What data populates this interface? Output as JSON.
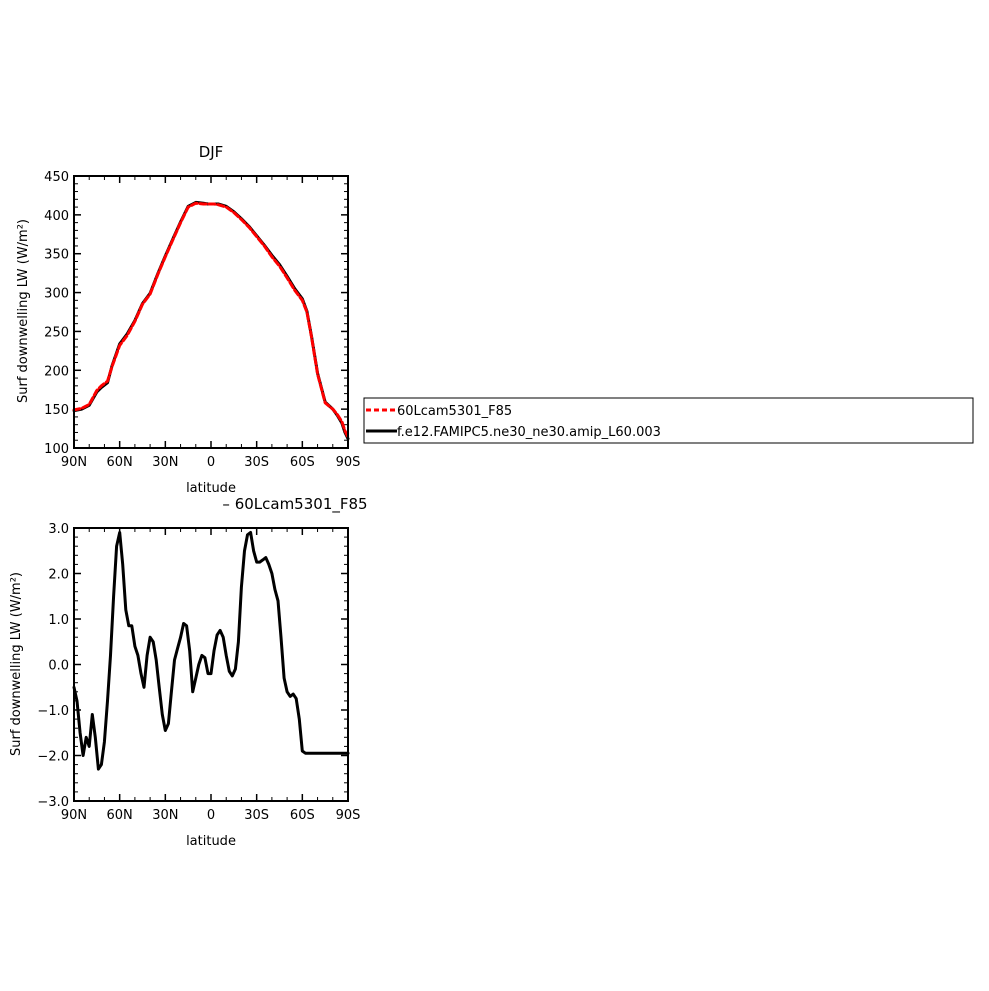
{
  "chart_data": [
    {
      "type": "line",
      "title": "DJF",
      "xlabel": "latitude",
      "ylabel": "Surf downwelling LW (W/m²)",
      "x_ticks": [
        90,
        60,
        30,
        0,
        -30,
        -60,
        -90
      ],
      "x_tick_labels": [
        "90N",
        "60N",
        "30N",
        "0",
        "30S",
        "60S",
        "90S"
      ],
      "xlim": [
        90,
        -90
      ],
      "ylim": [
        100,
        450
      ],
      "y_ticks": [
        100,
        150,
        200,
        250,
        300,
        350,
        400,
        450
      ],
      "y_tick_labels": [
        "100",
        "150",
        "200",
        "250",
        "300",
        "350",
        "400",
        "450"
      ],
      "x": [
        90,
        85,
        80,
        75,
        72,
        68,
        65,
        60,
        55,
        50,
        45,
        40,
        35,
        30,
        25,
        20,
        15,
        10,
        5,
        2,
        0,
        -2,
        -5,
        -10,
        -15,
        -20,
        -25,
        -30,
        -35,
        -40,
        -45,
        -50,
        -55,
        -60,
        -63,
        -66,
        -70,
        -75,
        -80,
        -83,
        -86,
        -88,
        -90
      ],
      "series": [
        {
          "name": "60Lcam5301_F85",
          "color": "#ff0000",
          "dash": "dashed",
          "values": [
            149,
            151,
            156,
            174,
            180,
            186,
            205,
            232,
            245,
            263,
            285,
            298,
            323,
            346,
            368,
            390,
            410,
            415,
            414,
            414,
            414,
            414,
            413,
            410,
            403,
            394,
            384,
            372,
            360,
            346,
            334,
            319,
            303,
            290,
            275,
            243,
            195,
            158,
            150,
            143,
            134,
            122,
            114
          ]
        },
        {
          "name": "f.e12.FAMIPC5.ne30_ne30.amip_L60.003",
          "color": "#000000",
          "dash": "solid",
          "values": [
            148,
            150,
            155,
            172,
            178,
            184,
            206,
            234,
            247,
            264,
            286,
            299,
            324,
            347,
            369,
            391,
            411,
            416,
            415,
            414,
            414,
            414,
            414,
            411,
            404,
            395,
            385,
            373,
            361,
            348,
            336,
            321,
            305,
            292,
            276,
            244,
            196,
            159,
            150,
            142,
            132,
            120,
            112
          ]
        }
      ],
      "legend": {
        "placement": "right",
        "entries": [
          "60Lcam5301_F85",
          "f.e12.FAMIPC5.ne30_ne30.amip_L60.003"
        ]
      }
    },
    {
      "type": "line",
      "title": "– 60Lcam5301_F85",
      "xlabel": "latitude",
      "ylabel": "Surf downwelling LW (W/m²)",
      "x_ticks": [
        90,
        60,
        30,
        0,
        -30,
        -60,
        -90
      ],
      "x_tick_labels": [
        "90N",
        "60N",
        "30N",
        "0",
        "30S",
        "60S",
        "90S"
      ],
      "xlim": [
        90,
        -90
      ],
      "ylim": [
        -3,
        3
      ],
      "y_ticks": [
        -3,
        -2,
        -1,
        0,
        1,
        2,
        3
      ],
      "y_tick_labels": [
        "−3.0",
        "−2.0",
        "−1.0",
        "0.0",
        "1.0",
        "2.0",
        "3.0"
      ],
      "x": [
        90,
        88,
        86,
        84,
        82,
        80,
        78,
        76,
        74,
        72,
        70,
        68,
        66,
        64,
        62,
        60,
        58,
        56,
        54,
        52,
        50,
        48,
        46,
        44,
        42,
        40,
        38,
        36,
        34,
        32,
        30,
        28,
        26,
        24,
        22,
        20,
        18,
        16,
        14,
        12,
        10,
        8,
        6,
        4,
        2,
        0,
        -2,
        -4,
        -6,
        -8,
        -10,
        -12,
        -14,
        -16,
        -18,
        -20,
        -22,
        -24,
        -26,
        -28,
        -30,
        -32,
        -34,
        -36,
        -38,
        -40,
        -42,
        -44,
        -46,
        -48,
        -50,
        -52,
        -54,
        -56,
        -58,
        -60,
        -62,
        -64,
        -66,
        -68,
        -70,
        -72,
        -74,
        -76,
        -78,
        -80,
        -82,
        -84,
        -86,
        -88,
        -90
      ],
      "series": [
        {
          "name": "",
          "color": "#000000",
          "dash": "solid",
          "values": [
            -0.5,
            -0.8,
            -1.5,
            -2.0,
            -1.6,
            -1.8,
            -1.1,
            -1.6,
            -2.3,
            -2.2,
            -1.7,
            -0.8,
            0.2,
            1.5,
            2.6,
            2.9,
            2.2,
            1.2,
            0.85,
            0.85,
            0.4,
            0.2,
            -0.2,
            -0.5,
            0.2,
            0.6,
            0.5,
            0.1,
            -0.5,
            -1.1,
            -1.45,
            -1.3,
            -0.6,
            0.1,
            0.35,
            0.6,
            0.9,
            0.85,
            0.3,
            -0.6,
            -0.3,
            0.0,
            0.2,
            0.15,
            -0.2,
            -0.2,
            0.3,
            0.65,
            0.75,
            0.6,
            0.2,
            -0.15,
            -0.25,
            -0.1,
            0.5,
            1.7,
            2.5,
            2.85,
            2.9,
            2.5,
            2.25,
            2.25,
            2.3,
            2.35,
            2.2,
            2.0,
            1.65,
            1.4,
            0.6,
            -0.3,
            -0.6,
            -0.7,
            -0.65,
            -0.75,
            -1.2,
            -1.9,
            -1.95,
            -1.95,
            -1.95,
            -1.95,
            -1.95,
            -1.95,
            -1.95,
            -1.95,
            -1.95,
            -1.95,
            -1.95,
            -1.95,
            -1.95,
            -1.95,
            -1.95
          ]
        }
      ]
    }
  ]
}
